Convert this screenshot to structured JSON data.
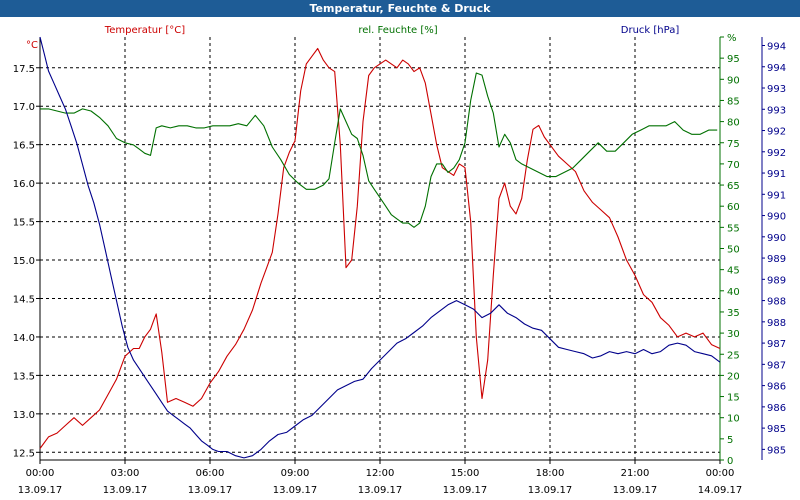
{
  "title": "Temperatur, Feuchte & Druck",
  "colors": {
    "temperature": "#cc0000",
    "humidity": "#007000",
    "pressure": "#00008b",
    "title_bar": "#1e5c96",
    "axis": "#000000"
  },
  "chart_data": {
    "type": "line",
    "title": "Temperatur, Feuchte & Druck",
    "x_tick_times": [
      "00:00",
      "03:00",
      "06:00",
      "09:00",
      "12:00",
      "15:00",
      "18:00",
      "21:00",
      "00:00"
    ],
    "x_tick_dates": [
      "13.09.17",
      "13.09.17",
      "13.09.17",
      "13.09.17",
      "13.09.17",
      "13.09.17",
      "13.09.17",
      "13.09.17",
      "14.09.17"
    ],
    "x_range_hours": [
      0,
      24
    ],
    "grid": true,
    "axes": {
      "temperature": {
        "unit": "°C",
        "range": [
          12.4,
          17.9
        ],
        "ticks": [
          "12.5",
          "13.0",
          "13.5",
          "14.0",
          "14.5",
          "15.0",
          "15.5",
          "16.0",
          "16.5",
          "17.0",
          "17.5"
        ],
        "tick_values": [
          12.5,
          13.0,
          13.5,
          14.0,
          14.5,
          15.0,
          15.5,
          16.0,
          16.5,
          17.0,
          17.5
        ]
      },
      "humidity": {
        "unit": "%",
        "range": [
          0,
          100
        ],
        "ticks": [
          "0",
          "5",
          "10",
          "15",
          "20",
          "25",
          "30",
          "35",
          "40",
          "45",
          "50",
          "55",
          "60",
          "65",
          "70",
          "75",
          "80",
          "85",
          "90",
          "95",
          "%"
        ],
        "tick_values": [
          0,
          5,
          10,
          15,
          20,
          25,
          30,
          35,
          40,
          45,
          50,
          55,
          60,
          65,
          70,
          75,
          80,
          85,
          90,
          95,
          100
        ]
      },
      "pressure": {
        "unit": "hPa",
        "range": [
          984.75,
          994.7
        ],
        "ticks": [
          "985",
          "985",
          "986",
          "986",
          "987",
          "987",
          "988",
          "988",
          "989",
          "989",
          "990",
          "990",
          "991",
          "991",
          "992",
          "992",
          "993",
          "993",
          "994",
          "994",
          "hPa"
        ],
        "tick_values": [
          985.0,
          985.5,
          986.0,
          986.5,
          987.0,
          987.5,
          988.0,
          988.5,
          989.0,
          989.5,
          990.0,
          990.5,
          991.0,
          991.5,
          992.0,
          992.5,
          993.0,
          993.5,
          994.0,
          994.5,
          995.0
        ]
      }
    },
    "series": [
      {
        "name": "Temperatur [°C]",
        "key": "temperature",
        "color": "#cc0000",
        "x": [
          0,
          0.3,
          0.6,
          0.9,
          1.2,
          1.5,
          1.8,
          2.1,
          2.4,
          2.7,
          3.0,
          3.3,
          3.5,
          3.7,
          3.9,
          4.0,
          4.1,
          4.3,
          4.5,
          4.8,
          5.1,
          5.4,
          5.7,
          6.0,
          6.3,
          6.6,
          6.9,
          7.2,
          7.5,
          7.8,
          8.0,
          8.2,
          8.4,
          8.6,
          8.8,
          9.0,
          9.2,
          9.4,
          9.6,
          9.8,
          10.0,
          10.2,
          10.4,
          10.6,
          10.8,
          11.0,
          11.2,
          11.4,
          11.6,
          11.8,
          12.0,
          12.2,
          12.4,
          12.6,
          12.8,
          13.0,
          13.2,
          13.4,
          13.6,
          13.8,
          14.0,
          14.2,
          14.4,
          14.6,
          14.8,
          15.0,
          15.2,
          15.4,
          15.6,
          15.8,
          16.0,
          16.2,
          16.4,
          16.6,
          16.8,
          17.0,
          17.2,
          17.4,
          17.6,
          17.8,
          18.0,
          18.3,
          18.6,
          18.9,
          19.2,
          19.5,
          19.8,
          20.1,
          20.4,
          20.7,
          21.0,
          21.3,
          21.6,
          21.9,
          22.2,
          22.5,
          22.8,
          23.1,
          23.4,
          23.7,
          24.0
        ],
        "y": [
          12.55,
          12.7,
          12.75,
          12.85,
          12.95,
          12.85,
          12.95,
          13.05,
          13.25,
          13.45,
          13.75,
          13.85,
          13.85,
          14.0,
          14.1,
          14.2,
          14.3,
          13.8,
          13.15,
          13.2,
          13.15,
          13.1,
          13.2,
          13.4,
          13.55,
          13.75,
          13.9,
          14.1,
          14.35,
          14.7,
          14.9,
          15.1,
          15.6,
          16.2,
          16.4,
          16.55,
          17.2,
          17.55,
          17.65,
          17.75,
          17.6,
          17.5,
          17.45,
          16.5,
          14.9,
          15.0,
          15.7,
          16.8,
          17.4,
          17.5,
          17.55,
          17.6,
          17.55,
          17.5,
          17.6,
          17.55,
          17.45,
          17.5,
          17.3,
          16.9,
          16.5,
          16.2,
          16.15,
          16.1,
          16.25,
          16.2,
          15.5,
          14.0,
          13.2,
          13.7,
          14.8,
          15.8,
          16.0,
          15.7,
          15.6,
          15.8,
          16.3,
          16.7,
          16.75,
          16.6,
          16.5,
          16.35,
          16.25,
          16.15,
          15.9,
          15.75,
          15.65,
          15.55,
          15.3,
          15.0,
          14.8,
          14.55,
          14.45,
          14.25,
          14.15,
          14.0,
          14.05,
          14.0,
          14.05,
          13.9,
          13.85
        ]
      },
      {
        "name": "rel. Feuchte [%]",
        "key": "humidity",
        "color": "#007000",
        "x": [
          0,
          0.3,
          0.6,
          0.9,
          1.2,
          1.5,
          1.8,
          2.1,
          2.4,
          2.7,
          3.0,
          3.3,
          3.5,
          3.7,
          3.9,
          4.1,
          4.3,
          4.6,
          4.9,
          5.2,
          5.5,
          5.8,
          6.1,
          6.4,
          6.7,
          7.0,
          7.3,
          7.6,
          7.9,
          8.2,
          8.5,
          8.8,
          9.1,
          9.4,
          9.7,
          10.0,
          10.2,
          10.4,
          10.6,
          10.8,
          11.0,
          11.2,
          11.4,
          11.6,
          11.8,
          12.0,
          12.2,
          12.4,
          12.6,
          12.8,
          13.0,
          13.2,
          13.4,
          13.6,
          13.8,
          14.0,
          14.2,
          14.4,
          14.6,
          14.8,
          15.0,
          15.2,
          15.4,
          15.6,
          15.8,
          16.0,
          16.2,
          16.4,
          16.6,
          16.8,
          17.0,
          17.3,
          17.6,
          17.9,
          18.2,
          18.5,
          18.8,
          19.1,
          19.4,
          19.7,
          20.0,
          20.3,
          20.6,
          20.9,
          21.2,
          21.5,
          21.8,
          22.1,
          22.4,
          22.7,
          23.0,
          23.3,
          23.6,
          23.9
        ],
        "y": [
          83,
          83,
          82.5,
          82,
          82,
          83,
          82.5,
          81,
          79,
          76,
          75,
          74.5,
          73.5,
          72.5,
          72,
          78.5,
          79,
          78.5,
          79,
          79,
          78.5,
          78.5,
          79,
          79,
          79,
          79.5,
          79,
          81.5,
          79,
          74,
          71,
          67.5,
          65.5,
          64,
          64,
          65,
          66.5,
          75,
          83,
          80,
          77,
          76,
          72,
          66,
          64,
          62,
          60,
          58,
          57,
          56,
          56,
          55,
          56,
          60,
          67,
          70,
          70,
          68,
          69,
          71,
          75,
          85,
          91.5,
          91,
          86,
          82,
          74,
          77,
          75,
          71,
          70,
          69,
          68,
          67,
          67,
          68,
          69,
          71,
          73,
          75,
          73,
          73,
          75,
          77,
          78,
          79,
          79,
          79,
          80,
          78,
          77,
          77,
          78,
          78
        ]
      },
      {
        "name": "Druck [hPa]",
        "key": "pressure",
        "color": "#00008b",
        "x": [
          0,
          0.15,
          0.3,
          0.5,
          0.7,
          0.9,
          1.1,
          1.3,
          1.5,
          1.7,
          1.9,
          2.1,
          2.3,
          2.5,
          2.7,
          2.9,
          3.1,
          3.3,
          3.5,
          3.7,
          3.9,
          4.1,
          4.3,
          4.5,
          4.7,
          4.9,
          5.1,
          5.3,
          5.5,
          5.7,
          5.9,
          6.1,
          6.3,
          6.6,
          6.9,
          7.2,
          7.5,
          7.8,
          8.1,
          8.4,
          8.7,
          9.0,
          9.3,
          9.6,
          9.9,
          10.2,
          10.5,
          10.8,
          11.1,
          11.4,
          11.7,
          12.0,
          12.3,
          12.6,
          12.9,
          13.2,
          13.5,
          13.8,
          14.1,
          14.4,
          14.7,
          15.0,
          15.3,
          15.6,
          15.9,
          16.2,
          16.5,
          16.8,
          17.1,
          17.4,
          17.7,
          18.0,
          18.3,
          18.6,
          18.9,
          19.2,
          19.5,
          19.8,
          20.1,
          20.4,
          20.7,
          21.0,
          21.3,
          21.6,
          21.9,
          22.2,
          22.5,
          22.8,
          23.1,
          23.4,
          23.7,
          24.0
        ],
        "y": [
          994.7,
          994.3,
          993.9,
          993.6,
          993.3,
          993.0,
          992.6,
          992.2,
          991.7,
          991.2,
          990.8,
          990.3,
          989.7,
          989.1,
          988.5,
          987.9,
          987.4,
          987.1,
          986.9,
          986.7,
          986.5,
          986.3,
          986.1,
          985.9,
          985.8,
          985.7,
          985.6,
          985.5,
          985.35,
          985.2,
          985.1,
          985.0,
          984.95,
          984.95,
          984.85,
          984.8,
          984.85,
          985.0,
          985.2,
          985.35,
          985.4,
          985.55,
          985.7,
          985.8,
          986.0,
          986.2,
          986.4,
          986.5,
          986.6,
          986.65,
          986.9,
          987.1,
          987.3,
          987.5,
          987.6,
          987.75,
          987.9,
          988.1,
          988.25,
          988.4,
          988.5,
          988.4,
          988.3,
          988.1,
          988.2,
          988.4,
          988.2,
          988.1,
          987.95,
          987.85,
          987.8,
          987.6,
          987.4,
          987.35,
          987.3,
          987.25,
          987.15,
          987.2,
          987.3,
          987.25,
          987.3,
          987.25,
          987.35,
          987.25,
          987.3,
          987.45,
          987.5,
          987.45,
          987.3,
          987.25,
          987.2,
          987.05
        ]
      }
    ]
  }
}
